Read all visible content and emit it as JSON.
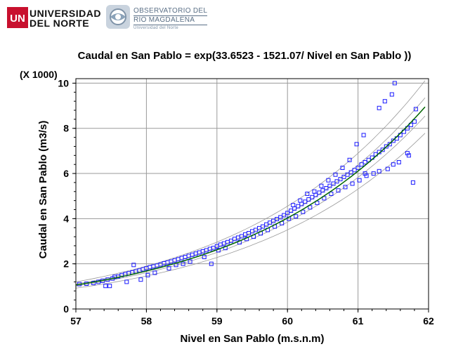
{
  "header": {
    "university": {
      "mark": "UN",
      "line1": "UNIVERSIDAD",
      "line2": "DEL NORTE"
    },
    "observatory": {
      "line1": "OBSERVATORIO DEL",
      "line2": "RÍO MAGDALENA",
      "line3": "Universidad del Norte"
    }
  },
  "chart_data": {
    "type": "scatter",
    "title": "Caudal en San Pablo = exp(33.6523 - 1521.07/  Nivel en San Pablo ))",
    "xlabel": "Nivel en San Pablo   (m.s.n.m)",
    "ylabel": "Caudal en  San Pablo  (m3/s)",
    "y_multiplier_label": "(X 1000)",
    "xlim": [
      57,
      62
    ],
    "ylim": [
      0,
      10.2
    ],
    "x_ticks": [
      57,
      58,
      59,
      60,
      61,
      62
    ],
    "y_ticks": [
      0,
      2,
      4,
      6,
      8,
      10
    ],
    "x_tick_labels": [
      "57",
      "58",
      "59",
      "60",
      "61",
      "62"
    ],
    "y_tick_labels": [
      "0",
      "2",
      "4",
      "6",
      "8",
      "10"
    ],
    "grid": true,
    "model": {
      "a": 33.6523,
      "b": 1521.07,
      "y_unit_divisor": 1000
    },
    "bands": {
      "inner_factor": 0.045,
      "outer_factor": 0.13
    },
    "colors": {
      "points": "#1a1aff",
      "fit": "#006400",
      "bands": "#9a9a9a",
      "grid": "#9a9a9a"
    },
    "series": [
      {
        "name": "",
        "role": "observations",
        "points": [
          [
            57.05,
            1.1
          ],
          [
            57.15,
            1.12
          ],
          [
            57.25,
            1.15
          ],
          [
            57.32,
            1.2
          ],
          [
            57.38,
            1.25
          ],
          [
            57.42,
            1.02
          ],
          [
            57.45,
            1.3
          ],
          [
            57.48,
            1.02
          ],
          [
            57.52,
            1.35
          ],
          [
            57.55,
            1.42
          ],
          [
            57.6,
            1.44
          ],
          [
            57.65,
            1.5
          ],
          [
            57.7,
            1.54
          ],
          [
            57.72,
            1.2
          ],
          [
            57.75,
            1.58
          ],
          [
            57.8,
            1.62
          ],
          [
            57.82,
            1.95
          ],
          [
            57.85,
            1.66
          ],
          [
            57.9,
            1.7
          ],
          [
            57.92,
            1.3
          ],
          [
            57.95,
            1.75
          ],
          [
            58.0,
            1.8
          ],
          [
            58.02,
            1.5
          ],
          [
            58.05,
            1.85
          ],
          [
            58.1,
            1.88
          ],
          [
            58.12,
            1.6
          ],
          [
            58.15,
            1.92
          ],
          [
            58.2,
            1.97
          ],
          [
            58.25,
            2.02
          ],
          [
            58.3,
            2.06
          ],
          [
            58.32,
            1.8
          ],
          [
            58.35,
            2.1
          ],
          [
            58.4,
            2.15
          ],
          [
            58.42,
            1.95
          ],
          [
            58.45,
            2.2
          ],
          [
            58.5,
            2.25
          ],
          [
            58.52,
            2.0
          ],
          [
            58.55,
            2.3
          ],
          [
            58.6,
            2.35
          ],
          [
            58.62,
            2.1
          ],
          [
            58.65,
            2.4
          ],
          [
            58.7,
            2.45
          ],
          [
            58.75,
            2.5
          ],
          [
            58.8,
            2.55
          ],
          [
            58.82,
            2.3
          ],
          [
            58.85,
            2.6
          ],
          [
            58.9,
            2.66
          ],
          [
            58.92,
            2.0
          ],
          [
            58.95,
            2.7
          ],
          [
            59.0,
            2.78
          ],
          [
            59.02,
            2.6
          ],
          [
            59.05,
            2.85
          ],
          [
            59.1,
            2.9
          ],
          [
            59.12,
            2.7
          ],
          [
            59.15,
            2.96
          ],
          [
            59.2,
            3.02
          ],
          [
            59.25,
            3.1
          ],
          [
            59.3,
            3.16
          ],
          [
            59.32,
            2.95
          ],
          [
            59.35,
            3.22
          ],
          [
            59.4,
            3.3
          ],
          [
            59.42,
            3.1
          ],
          [
            59.45,
            3.36
          ],
          [
            59.5,
            3.44
          ],
          [
            59.52,
            3.2
          ],
          [
            59.55,
            3.5
          ],
          [
            59.6,
            3.58
          ],
          [
            59.62,
            3.35
          ],
          [
            59.65,
            3.65
          ],
          [
            59.7,
            3.74
          ],
          [
            59.72,
            3.5
          ],
          [
            59.75,
            3.82
          ],
          [
            59.8,
            3.9
          ],
          [
            59.82,
            3.65
          ],
          [
            59.85,
            3.98
          ],
          [
            59.9,
            4.06
          ],
          [
            59.92,
            3.8
          ],
          [
            59.95,
            4.15
          ],
          [
            60.0,
            4.25
          ],
          [
            60.02,
            4.0
          ],
          [
            60.05,
            4.35
          ],
          [
            60.08,
            4.6
          ],
          [
            60.1,
            4.45
          ],
          [
            60.12,
            4.1
          ],
          [
            60.15,
            4.55
          ],
          [
            60.18,
            4.8
          ],
          [
            60.2,
            4.65
          ],
          [
            60.22,
            4.3
          ],
          [
            60.25,
            4.75
          ],
          [
            60.28,
            5.1
          ],
          [
            60.3,
            4.85
          ],
          [
            60.32,
            4.5
          ],
          [
            60.35,
            4.95
          ],
          [
            60.38,
            5.2
          ],
          [
            60.4,
            5.05
          ],
          [
            60.42,
            4.7
          ],
          [
            60.45,
            5.15
          ],
          [
            60.48,
            5.45
          ],
          [
            60.5,
            5.25
          ],
          [
            60.52,
            4.9
          ],
          [
            60.55,
            5.35
          ],
          [
            60.58,
            5.7
          ],
          [
            60.6,
            5.45
          ],
          [
            60.62,
            5.1
          ],
          [
            60.65,
            5.55
          ],
          [
            60.68,
            5.95
          ],
          [
            60.7,
            5.65
          ],
          [
            60.72,
            5.25
          ],
          [
            60.75,
            5.75
          ],
          [
            60.78,
            6.25
          ],
          [
            60.8,
            5.85
          ],
          [
            60.82,
            5.4
          ],
          [
            60.85,
            5.95
          ],
          [
            60.88,
            6.6
          ],
          [
            60.9,
            6.05
          ],
          [
            60.92,
            5.55
          ],
          [
            60.95,
            6.15
          ],
          [
            60.98,
            7.3
          ],
          [
            61.0,
            6.25
          ],
          [
            61.02,
            5.7
          ],
          [
            61.05,
            6.4
          ],
          [
            61.08,
            7.7
          ],
          [
            61.1,
            6.5
          ],
          [
            61.12,
            5.9
          ],
          [
            61.15,
            6.6
          ],
          [
            61.2,
            6.7
          ],
          [
            61.22,
            6.0
          ],
          [
            61.25,
            6.85
          ],
          [
            61.3,
            8.9
          ],
          [
            61.3,
            6.95
          ],
          [
            61.35,
            7.05
          ],
          [
            61.38,
            9.2
          ],
          [
            61.4,
            7.2
          ],
          [
            61.42,
            6.2
          ],
          [
            61.45,
            7.3
          ],
          [
            61.48,
            9.5
          ],
          [
            61.5,
            7.45
          ],
          [
            61.52,
            10.0
          ],
          [
            61.55,
            7.55
          ],
          [
            61.58,
            6.5
          ],
          [
            61.6,
            7.7
          ],
          [
            61.65,
            7.85
          ],
          [
            61.7,
            8.0
          ],
          [
            61.72,
            6.8
          ],
          [
            61.75,
            8.15
          ],
          [
            61.78,
            5.6
          ],
          [
            61.8,
            8.3
          ],
          [
            61.82,
            8.85
          ],
          [
            61.1,
            6.0
          ],
          [
            61.3,
            6.1
          ],
          [
            61.5,
            6.4
          ],
          [
            61.7,
            6.9
          ]
        ]
      },
      {
        "name": "",
        "role": "fit-line"
      }
    ]
  }
}
